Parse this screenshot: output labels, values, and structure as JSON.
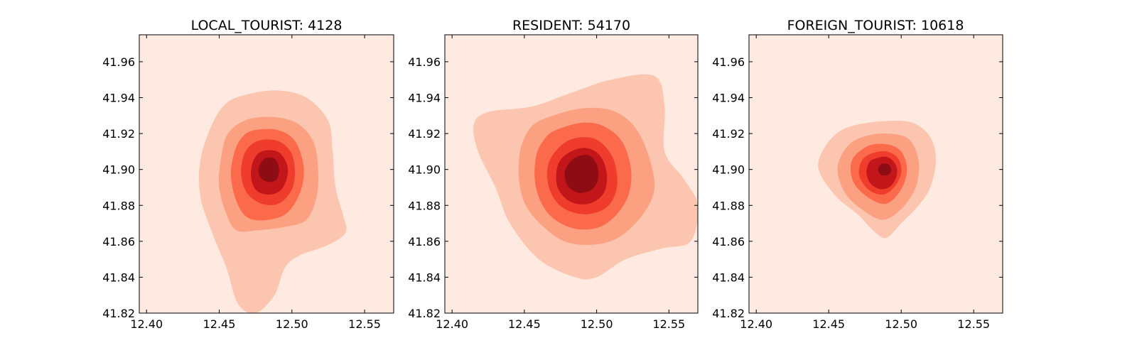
{
  "chart_data": [
    {
      "type": "density-contour",
      "title": "LOCAL_TOURIST: 4128",
      "xlim": [
        12.395,
        12.57
      ],
      "ylim": [
        41.82,
        41.975
      ],
      "xticks": [
        "12.40",
        "12.45",
        "12.50",
        "12.55"
      ],
      "xtick_values": [
        12.4,
        12.45,
        12.5,
        12.55
      ],
      "yticks": [
        "41.82",
        "41.84",
        "41.86",
        "41.88",
        "41.90",
        "41.92",
        "41.94",
        "41.96"
      ],
      "ytick_values": [
        41.82,
        41.84,
        41.86,
        41.88,
        41.9,
        41.92,
        41.94,
        41.96
      ],
      "peak": [
        12.484,
        41.9
      ],
      "levels": [
        {
          "color": "#fcc5af",
          "polygon": [
            [
              12.47,
              41.942
            ],
            [
              12.49,
              41.944
            ],
            [
              12.51,
              41.94
            ],
            [
              12.525,
              41.927
            ],
            [
              12.528,
              41.91
            ],
            [
              12.53,
              41.89
            ],
            [
              12.535,
              41.875
            ],
            [
              12.537,
              41.865
            ],
            [
              12.525,
              41.858
            ],
            [
              12.505,
              41.852
            ],
            [
              12.495,
              41.845
            ],
            [
              12.488,
              41.83
            ],
            [
              12.475,
              41.82
            ],
            [
              12.463,
              41.825
            ],
            [
              12.455,
              41.845
            ],
            [
              12.445,
              41.865
            ],
            [
              12.437,
              41.885
            ],
            [
              12.437,
              41.905
            ],
            [
              12.445,
              41.925
            ],
            [
              12.455,
              41.937
            ]
          ]
        },
        {
          "color": "#fca082",
          "polygon": [
            [
              12.47,
              41.928
            ],
            [
              12.49,
              41.929
            ],
            [
              12.505,
              41.925
            ],
            [
              12.515,
              41.915
            ],
            [
              12.518,
              41.9
            ],
            [
              12.517,
              41.885
            ],
            [
              12.51,
              41.872
            ],
            [
              12.495,
              41.868
            ],
            [
              12.475,
              41.866
            ],
            [
              12.462,
              41.866
            ],
            [
              12.455,
              41.875
            ],
            [
              12.45,
              41.89
            ],
            [
              12.451,
              41.905
            ],
            [
              12.456,
              41.92
            ]
          ]
        },
        {
          "color": "#fb6b4b",
          "polygon": [
            [
              12.475,
              41.922
            ],
            [
              12.49,
              41.922
            ],
            [
              12.502,
              41.916
            ],
            [
              12.508,
              41.902
            ],
            [
              12.506,
              41.888
            ],
            [
              12.497,
              41.876
            ],
            [
              12.484,
              41.872
            ],
            [
              12.47,
              41.873
            ],
            [
              12.462,
              41.882
            ],
            [
              12.458,
              41.897
            ],
            [
              12.461,
              41.911
            ],
            [
              12.467,
              41.919
            ]
          ]
        },
        {
          "color": "#ef3c2c",
          "polygon": [
            [
              12.477,
              41.916
            ],
            [
              12.49,
              41.916
            ],
            [
              12.499,
              41.91
            ],
            [
              12.502,
              41.9
            ],
            [
              12.5,
              41.889
            ],
            [
              12.491,
              41.881
            ],
            [
              12.479,
              41.881
            ],
            [
              12.469,
              41.887
            ],
            [
              12.465,
              41.898
            ],
            [
              12.468,
              41.91
            ]
          ]
        },
        {
          "color": "#c3161b",
          "polygon": [
            [
              12.479,
              41.91
            ],
            [
              12.49,
              41.91
            ],
            [
              12.496,
              41.904
            ],
            [
              12.497,
              41.897
            ],
            [
              12.493,
              41.889
            ],
            [
              12.485,
              41.886
            ],
            [
              12.476,
              41.888
            ],
            [
              12.472,
              41.895
            ],
            [
              12.473,
              41.904
            ]
          ]
        },
        {
          "color": "#8e0d15",
          "polygon": [
            [
              12.481,
              41.906
            ],
            [
              12.488,
              41.906
            ],
            [
              12.491,
              41.901
            ],
            [
              12.49,
              41.895
            ],
            [
              12.485,
              41.893
            ],
            [
              12.479,
              41.895
            ],
            [
              12.477,
              41.9
            ]
          ]
        }
      ]
    },
    {
      "type": "density-contour",
      "title": "RESIDENT: 54170",
      "xlim": [
        12.395,
        12.57
      ],
      "ylim": [
        41.82,
        41.975
      ],
      "xticks": [
        "12.40",
        "12.45",
        "12.50",
        "12.55"
      ],
      "xtick_values": [
        12.4,
        12.45,
        12.5,
        12.55
      ],
      "yticks": [
        "41.82",
        "41.84",
        "41.86",
        "41.88",
        "41.90",
        "41.92",
        "41.94",
        "41.96"
      ],
      "ytick_values": [
        41.82,
        41.84,
        41.86,
        41.88,
        41.9,
        41.92,
        41.94,
        41.96
      ],
      "peak": [
        12.49,
        41.899
      ],
      "levels": [
        {
          "color": "#fcc5af",
          "polygon": [
            [
              12.425,
              41.932
            ],
            [
              12.455,
              41.935
            ],
            [
              12.48,
              41.942
            ],
            [
              12.51,
              41.95
            ],
            [
              12.54,
              41.952
            ],
            [
              12.547,
              41.935
            ],
            [
              12.547,
              41.91
            ],
            [
              12.56,
              41.895
            ],
            [
              12.57,
              41.88
            ],
            [
              12.565,
              41.86
            ],
            [
              12.545,
              41.856
            ],
            [
              12.52,
              41.85
            ],
            [
              12.5,
              41.84
            ],
            [
              12.485,
              41.84
            ],
            [
              12.46,
              41.85
            ],
            [
              12.44,
              41.87
            ],
            [
              12.43,
              41.89
            ],
            [
              12.418,
              41.91
            ],
            [
              12.415,
              41.925
            ]
          ]
        },
        {
          "color": "#fca082",
          "polygon": [
            [
              12.47,
              41.93
            ],
            [
              12.49,
              41.934
            ],
            [
              12.51,
              41.933
            ],
            [
              12.525,
              41.925
            ],
            [
              12.535,
              41.91
            ],
            [
              12.54,
              41.89
            ],
            [
              12.532,
              41.875
            ],
            [
              12.515,
              41.862
            ],
            [
              12.495,
              41.858
            ],
            [
              12.475,
              41.861
            ],
            [
              12.455,
              41.875
            ],
            [
              12.447,
              41.89
            ],
            [
              12.447,
              41.91
            ],
            [
              12.455,
              41.924
            ]
          ]
        },
        {
          "color": "#fb6b4b",
          "polygon": [
            [
              12.472,
              41.922
            ],
            [
              12.49,
              41.926
            ],
            [
              12.505,
              41.924
            ],
            [
              12.518,
              41.915
            ],
            [
              12.524,
              41.898
            ],
            [
              12.52,
              41.882
            ],
            [
              12.505,
              41.869
            ],
            [
              12.485,
              41.867
            ],
            [
              12.467,
              41.875
            ],
            [
              12.458,
              41.89
            ],
            [
              12.458,
              41.907
            ],
            [
              12.464,
              41.917
            ]
          ]
        },
        {
          "color": "#ef3c2c",
          "polygon": [
            [
              12.478,
              41.915
            ],
            [
              12.492,
              41.918
            ],
            [
              12.503,
              41.915
            ],
            [
              12.512,
              41.905
            ],
            [
              12.514,
              41.89
            ],
            [
              12.507,
              41.879
            ],
            [
              12.492,
              41.875
            ],
            [
              12.476,
              41.879
            ],
            [
              12.467,
              41.89
            ],
            [
              12.467,
              41.904
            ]
          ]
        },
        {
          "color": "#c3161b",
          "polygon": [
            [
              12.48,
              41.909
            ],
            [
              12.492,
              41.912
            ],
            [
              12.502,
              41.908
            ],
            [
              12.507,
              41.898
            ],
            [
              12.505,
              41.887
            ],
            [
              12.495,
              41.881
            ],
            [
              12.482,
              41.882
            ],
            [
              12.473,
              41.89
            ],
            [
              12.473,
              41.902
            ]
          ]
        },
        {
          "color": "#8e0d15",
          "polygon": [
            [
              12.484,
              41.906
            ],
            [
              12.494,
              41.908
            ],
            [
              12.5,
              41.903
            ],
            [
              12.501,
              41.895
            ],
            [
              12.497,
              41.889
            ],
            [
              12.488,
              41.887
            ],
            [
              12.48,
              41.891
            ],
            [
              12.478,
              41.899
            ]
          ]
        }
      ]
    },
    {
      "type": "density-contour",
      "title": "FOREIGN_TOURIST: 10618",
      "xlim": [
        12.395,
        12.57
      ],
      "ylim": [
        41.82,
        41.975
      ],
      "xticks": [
        "12.40",
        "12.45",
        "12.50",
        "12.55"
      ],
      "xtick_values": [
        12.4,
        12.45,
        12.5,
        12.55
      ],
      "yticks": [
        "41.82",
        "41.84",
        "41.86",
        "41.88",
        "41.90",
        "41.92",
        "41.94",
        "41.96"
      ],
      "ytick_values": [
        41.82,
        41.84,
        41.86,
        41.88,
        41.9,
        41.92,
        41.94,
        41.96
      ],
      "peak": [
        12.488,
        41.9
      ],
      "levels": [
        {
          "color": "#fcc5af",
          "polygon": [
            [
              12.47,
              41.925
            ],
            [
              12.49,
              41.927
            ],
            [
              12.508,
              41.926
            ],
            [
              12.52,
              41.918
            ],
            [
              12.524,
              41.905
            ],
            [
              12.52,
              41.89
            ],
            [
              12.512,
              41.88
            ],
            [
              12.5,
              41.87
            ],
            [
              12.49,
              41.862
            ],
            [
              12.482,
              41.865
            ],
            [
              12.47,
              41.875
            ],
            [
              12.455,
              41.885
            ],
            [
              12.443,
              41.9
            ],
            [
              12.447,
              41.912
            ],
            [
              12.457,
              41.921
            ]
          ]
        },
        {
          "color": "#fca082",
          "polygon": [
            [
              12.473,
              41.918
            ],
            [
              12.49,
              41.92
            ],
            [
              12.505,
              41.917
            ],
            [
              12.512,
              41.905
            ],
            [
              12.51,
              41.89
            ],
            [
              12.5,
              41.878
            ],
            [
              12.488,
              41.872
            ],
            [
              12.476,
              41.876
            ],
            [
              12.462,
              41.886
            ],
            [
              12.456,
              41.9
            ],
            [
              12.462,
              41.912
            ]
          ]
        },
        {
          "color": "#fb6b4b",
          "polygon": [
            [
              12.477,
              41.913
            ],
            [
              12.49,
              41.914
            ],
            [
              12.5,
              41.91
            ],
            [
              12.504,
              41.9
            ],
            [
              12.5,
              41.889
            ],
            [
              12.49,
              41.881
            ],
            [
              12.478,
              41.884
            ],
            [
              12.467,
              41.893
            ],
            [
              12.466,
              41.905
            ]
          ]
        },
        {
          "color": "#ef3c2c",
          "polygon": [
            [
              12.48,
              41.909
            ],
            [
              12.49,
              41.91
            ],
            [
              12.498,
              41.906
            ],
            [
              12.5,
              41.898
            ],
            [
              12.495,
              41.89
            ],
            [
              12.487,
              41.886
            ],
            [
              12.477,
              41.889
            ],
            [
              12.471,
              41.897
            ],
            [
              12.473,
              41.905
            ]
          ]
        },
        {
          "color": "#c3161b",
          "polygon": [
            [
              12.482,
              41.906
            ],
            [
              12.49,
              41.907
            ],
            [
              12.496,
              41.903
            ],
            [
              12.497,
              41.897
            ],
            [
              12.493,
              41.891
            ],
            [
              12.486,
              41.889
            ],
            [
              12.479,
              41.892
            ],
            [
              12.476,
              41.898
            ],
            [
              12.478,
              41.904
            ]
          ]
        },
        {
          "color": "#8e0d15",
          "polygon": [
            [
              12.486,
              41.903
            ],
            [
              12.491,
              41.903
            ],
            [
              12.493,
              41.9
            ],
            [
              12.491,
              41.897
            ],
            [
              12.486,
              41.897
            ],
            [
              12.484,
              41.9
            ]
          ]
        }
      ]
    }
  ],
  "colors": {
    "background_level": "#feeae1",
    "axes_edge": "#000000"
  }
}
